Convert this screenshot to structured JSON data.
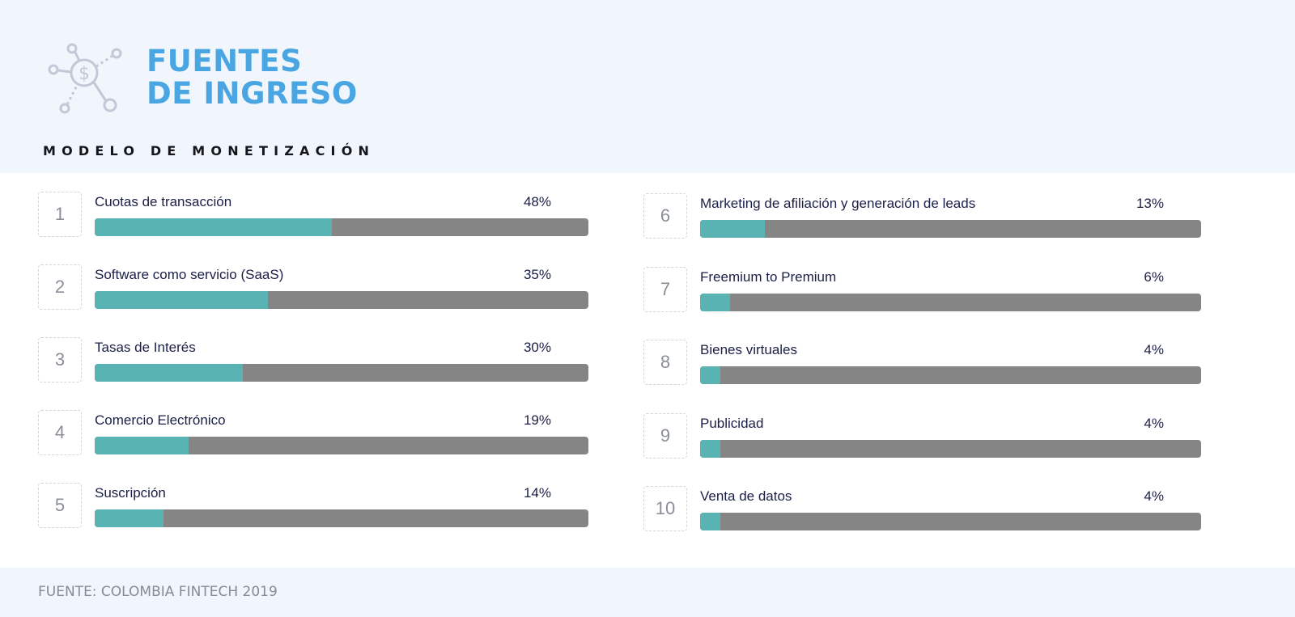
{
  "header": {
    "title_line1": "FUENTES",
    "title_line2": "DE INGRESO",
    "subtitle": "MODELO DE MONETIZACIÓN",
    "icon": "money-network-icon"
  },
  "colors": {
    "accent": "#4aa6e2",
    "fill": "#5ab3b3",
    "track": "#858585",
    "background": "#f1f6fd"
  },
  "chart_data": {
    "type": "bar",
    "orientation": "horizontal",
    "title": "FUENTES DE INGRESO",
    "subtitle": "MODELO DE MONETIZACIÓN",
    "ylim": [
      0,
      100
    ],
    "unit": "%",
    "categories": [
      "Cuotas de transacción",
      "Software como servicio (SaaS)",
      "Tasas de Interés",
      "Comercio Electrónico",
      "Suscripción",
      "Marketing de afiliación y generación de leads",
      "Freemium to Premium",
      "Bienes virtuales",
      "Publicidad",
      "Venta de datos"
    ],
    "values": [
      48,
      35,
      30,
      19,
      14,
      13,
      6,
      4,
      4,
      4
    ],
    "ranks": [
      "1",
      "2",
      "3",
      "4",
      "5",
      "6",
      "7",
      "8",
      "9",
      "10"
    ],
    "value_labels": [
      "48%",
      "35%",
      "30%",
      "19%",
      "14%",
      "13%",
      "6%",
      "4%",
      "4%",
      "4%"
    ]
  },
  "footer": {
    "source": "FUENTE: COLOMBIA FINTECH 2019"
  }
}
